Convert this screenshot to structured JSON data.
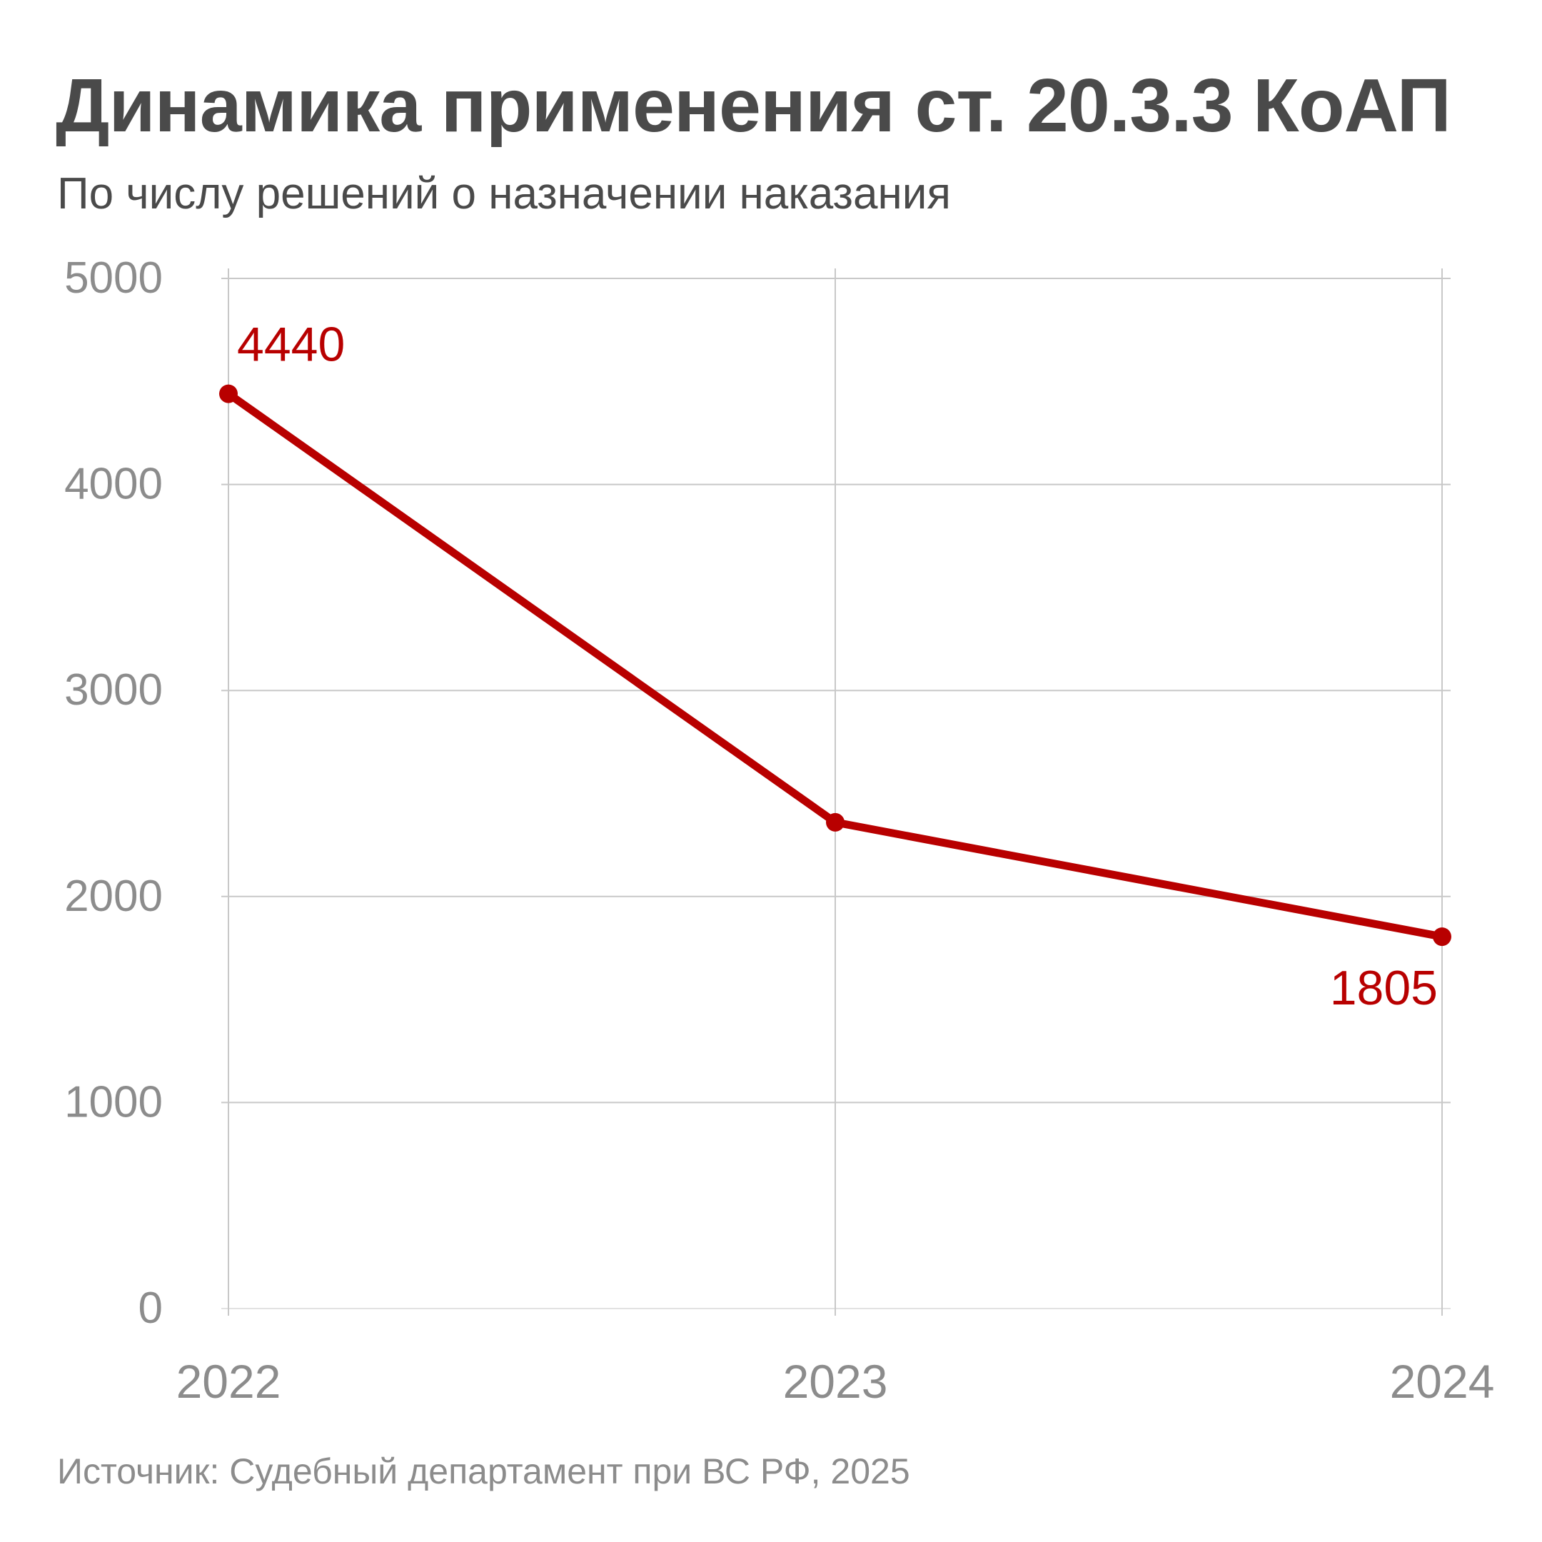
{
  "chart_data": {
    "type": "line",
    "title": "Динамика применения ст. 20.3.3 КоАП",
    "subtitle": "По числу решений о назначении наказания",
    "source": "Источник: Судебный департамент при ВС РФ, 2025",
    "categories": [
      "2022",
      "2023",
      "2024"
    ],
    "series": [
      {
        "values": [
          4440,
          2360,
          1805
        ],
        "color": "#b80000",
        "data_labels": [
          "4440",
          "",
          "1805"
        ]
      }
    ],
    "ylim": [
      0,
      5000
    ],
    "yticks": [
      0,
      1000,
      2000,
      3000,
      4000,
      5000
    ],
    "grid": true,
    "legend": "none",
    "colors": {
      "line": "#b80000",
      "grid": "#c8c8c8",
      "tick_text": "#8c8c8c",
      "title_text": "#4a4a4a"
    }
  }
}
